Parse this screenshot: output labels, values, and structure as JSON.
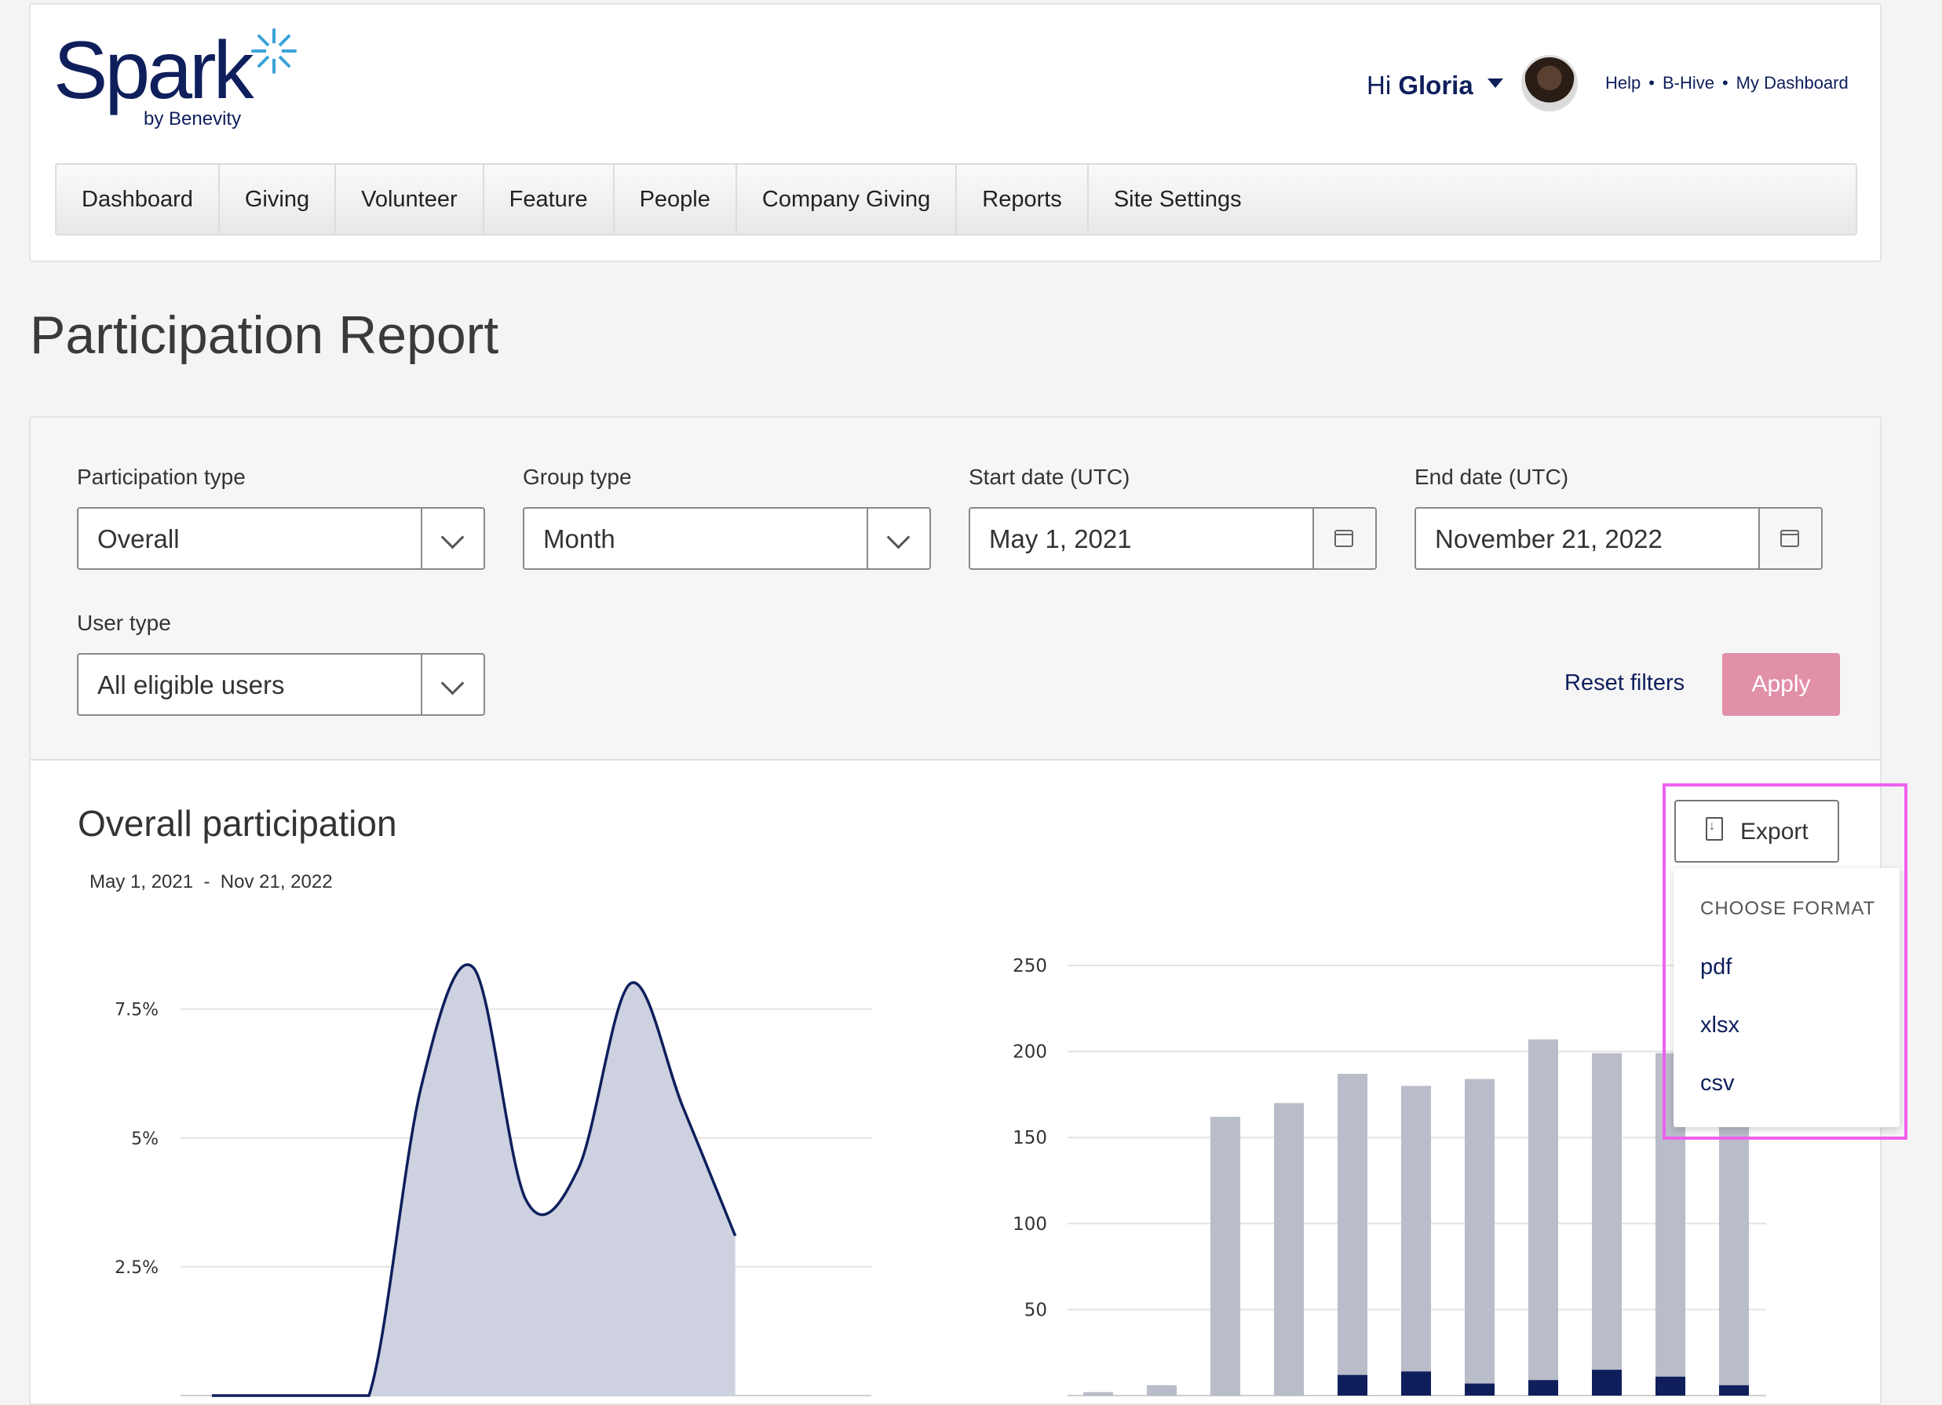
{
  "brand": {
    "name": "Spark",
    "sub": "by Benevity"
  },
  "header": {
    "greeting_prefix": "Hi",
    "user_name": "Gloria",
    "links": [
      "Help",
      "B-Hive",
      "My Dashboard"
    ]
  },
  "nav": [
    "Dashboard",
    "Giving",
    "Volunteer",
    "Feature",
    "People",
    "Company Giving",
    "Reports",
    "Site Settings"
  ],
  "page_title": "Participation Report",
  "filters": {
    "participation_type": {
      "label": "Participation type",
      "value": "Overall"
    },
    "group_type": {
      "label": "Group type",
      "value": "Month"
    },
    "start_date": {
      "label": "Start date (UTC)",
      "value": "May 1, 2021"
    },
    "end_date": {
      "label": "End date (UTC)",
      "value": "November 21, 2022"
    },
    "user_type": {
      "label": "User type",
      "value": "All eligible users"
    },
    "reset_label": "Reset filters",
    "apply_label": "Apply"
  },
  "section": {
    "title": "Overall participation",
    "range_start": "May 1, 2021",
    "range_sep": "-",
    "range_end": "Nov 21, 2022"
  },
  "export": {
    "label": "Export",
    "menu_header": "CHOOSE FORMAT",
    "options": [
      "pdf",
      "xlsx",
      "csv"
    ]
  },
  "colors": {
    "navy": "#0f1f5c",
    "area_fill": "#cdd1e0",
    "bar_grey": "#b9bcc9",
    "apply": "#e28fa8",
    "highlight": "#ee61ee"
  },
  "chart_data": [
    {
      "type": "area",
      "y_ticks": [
        "2.5%",
        "5%",
        "7.5%"
      ],
      "ylim": [
        0,
        8.5
      ],
      "x": [
        0,
        1,
        2,
        3,
        4,
        5,
        6,
        7,
        8,
        9,
        10,
        11,
        12
      ],
      "values": [
        0,
        0,
        0,
        0,
        6.0,
        8.3,
        3.8,
        4.4,
        8.0,
        5.6,
        3.1,
        null,
        null
      ]
    },
    {
      "type": "bar",
      "y_ticks": [
        "50",
        "100",
        "150",
        "200",
        "250"
      ],
      "ylim": [
        0,
        250
      ],
      "series": [
        {
          "values": [
            2,
            6,
            162,
            170,
            187,
            180,
            184,
            207,
            199,
            199,
            158
          ]
        },
        {
          "values": [
            0,
            0,
            0,
            0,
            12,
            14,
            7,
            9,
            15,
            11,
            6
          ]
        }
      ]
    }
  ]
}
